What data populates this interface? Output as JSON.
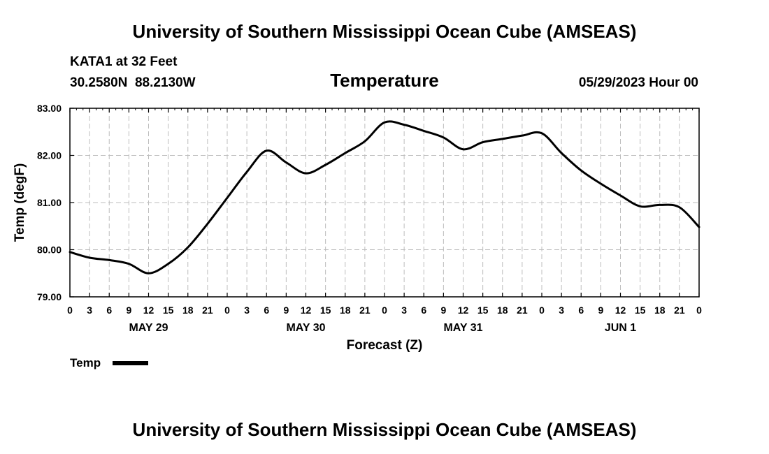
{
  "header": {
    "top_title": "University of Southern Mississippi Ocean Cube (AMSEAS)",
    "station_line": "KATA1 at 32 Feet",
    "coords_line": "30.2580N  88.2130W",
    "variable_title": "Temperature",
    "datetime": "05/29/2023 Hour 00"
  },
  "footer": {
    "bottom_title": "University of Southern Mississippi Ocean Cube (AMSEAS)"
  },
  "legend": {
    "label": "Temp"
  },
  "colors": {
    "line": "#000000",
    "grid": "#bdbdbd",
    "axis": "#000000",
    "background": "#ffffff"
  },
  "chart_data": {
    "type": "line",
    "title": "Temperature",
    "xlabel": "Forecast (Z)",
    "ylabel": "Temp (degF)",
    "xlim": [
      0,
      96
    ],
    "ylim": [
      79.0,
      83.0
    ],
    "y_ticks": [
      79.0,
      80.0,
      81.0,
      82.0,
      83.0
    ],
    "y_tick_labels": [
      "79.00",
      "80.00",
      "81.00",
      "82.00",
      "83.00"
    ],
    "x_ticks": [
      0,
      3,
      6,
      9,
      12,
      15,
      18,
      21,
      24,
      27,
      30,
      33,
      36,
      39,
      42,
      45,
      48,
      51,
      54,
      57,
      60,
      63,
      66,
      69,
      72,
      75,
      78,
      81,
      84,
      87,
      90,
      93,
      96
    ],
    "x_tick_labels": [
      "0",
      "3",
      "6",
      "9",
      "12",
      "15",
      "18",
      "21",
      "0",
      "3",
      "6",
      "9",
      "12",
      "15",
      "18",
      "21",
      "0",
      "3",
      "6",
      "9",
      "12",
      "15",
      "18",
      "21",
      "0",
      "3",
      "6",
      "9",
      "12",
      "15",
      "18",
      "21",
      "0"
    ],
    "day_labels": [
      {
        "hour": 12,
        "label": "MAY 29"
      },
      {
        "hour": 36,
        "label": "MAY 30"
      },
      {
        "hour": 60,
        "label": "MAY 31"
      },
      {
        "hour": 84,
        "label": "JUN 1"
      }
    ],
    "grid": true,
    "series": [
      {
        "name": "Temp",
        "x": [
          0,
          3,
          6,
          9,
          12,
          15,
          18,
          21,
          24,
          27,
          30,
          33,
          36,
          39,
          42,
          45,
          48,
          51,
          54,
          57,
          60,
          63,
          66,
          69,
          72,
          75,
          78,
          81,
          84,
          87,
          90,
          93,
          96
        ],
        "values": [
          79.95,
          79.83,
          79.78,
          79.7,
          79.5,
          79.7,
          80.05,
          80.55,
          81.1,
          81.65,
          82.1,
          81.85,
          81.62,
          81.8,
          82.05,
          82.3,
          82.7,
          82.65,
          82.52,
          82.38,
          82.13,
          82.28,
          82.35,
          82.42,
          82.47,
          82.05,
          81.68,
          81.4,
          81.15,
          80.92,
          80.95,
          80.9,
          80.48
        ]
      }
    ]
  }
}
